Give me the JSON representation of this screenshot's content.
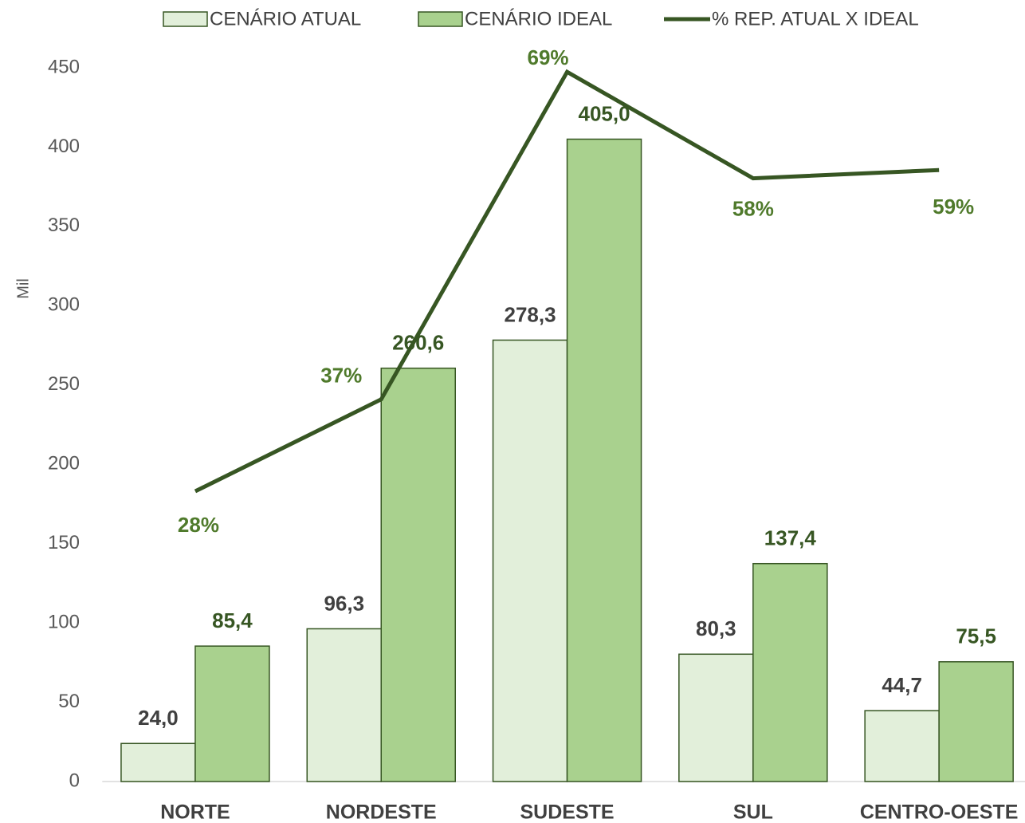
{
  "chart_data": {
    "type": "bar-line",
    "y_label": "Mil",
    "categories": [
      "NORTE",
      "NORDESTE",
      "SUDESTE",
      "SUL",
      "CENTRO-OESTE"
    ],
    "series": [
      {
        "name": "CENÁRIO ATUAL",
        "color": "#e2efda",
        "values": [
          24.0,
          96.3,
          278.3,
          80.3,
          44.7
        ],
        "value_labels": [
          "24,0",
          "96,3",
          "278,3",
          "80,3",
          "44,7"
        ]
      },
      {
        "name": "CENÁRIO IDEAL",
        "color": "#a9d18e",
        "values": [
          85.4,
          260.6,
          405.0,
          137.4,
          75.5
        ],
        "value_labels": [
          "85,4",
          "260,6",
          "405,0",
          "137,4",
          "75,5"
        ]
      },
      {
        "name": "% REP. ATUAL X IDEAL",
        "color": "#375623",
        "type": "line",
        "axis": "y2",
        "values": [
          28.1,
          37.0,
          68.7,
          58.4,
          59.2
        ],
        "value_labels": [
          "28%",
          "37%",
          "69%",
          "58%",
          "59%"
        ]
      }
    ],
    "ylim": [
      0,
      450
    ],
    "yticks": [
      0,
      50,
      100,
      150,
      200,
      250,
      300,
      350,
      400,
      450
    ],
    "y2lim": [
      0,
      69.1
    ]
  }
}
